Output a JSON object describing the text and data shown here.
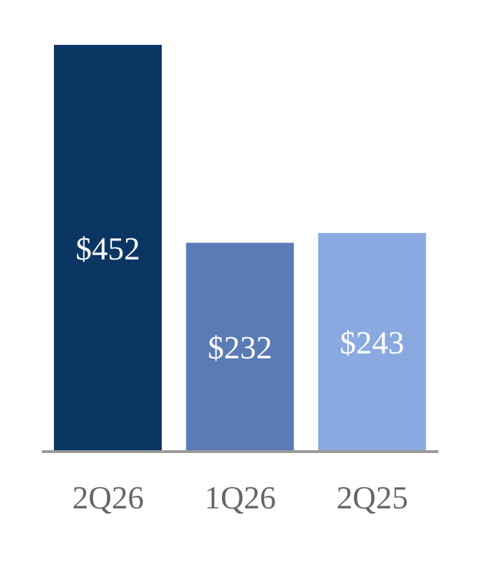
{
  "chart_data": {
    "type": "bar",
    "categories": [
      "2Q26",
      "1Q26",
      "2Q25"
    ],
    "values": [
      452,
      232,
      243
    ],
    "colors": [
      "#0b3563",
      "#5b7bb6",
      "#8aa9e0"
    ],
    "value_labels": [
      "$452",
      "$232",
      "$243"
    ]
  }
}
